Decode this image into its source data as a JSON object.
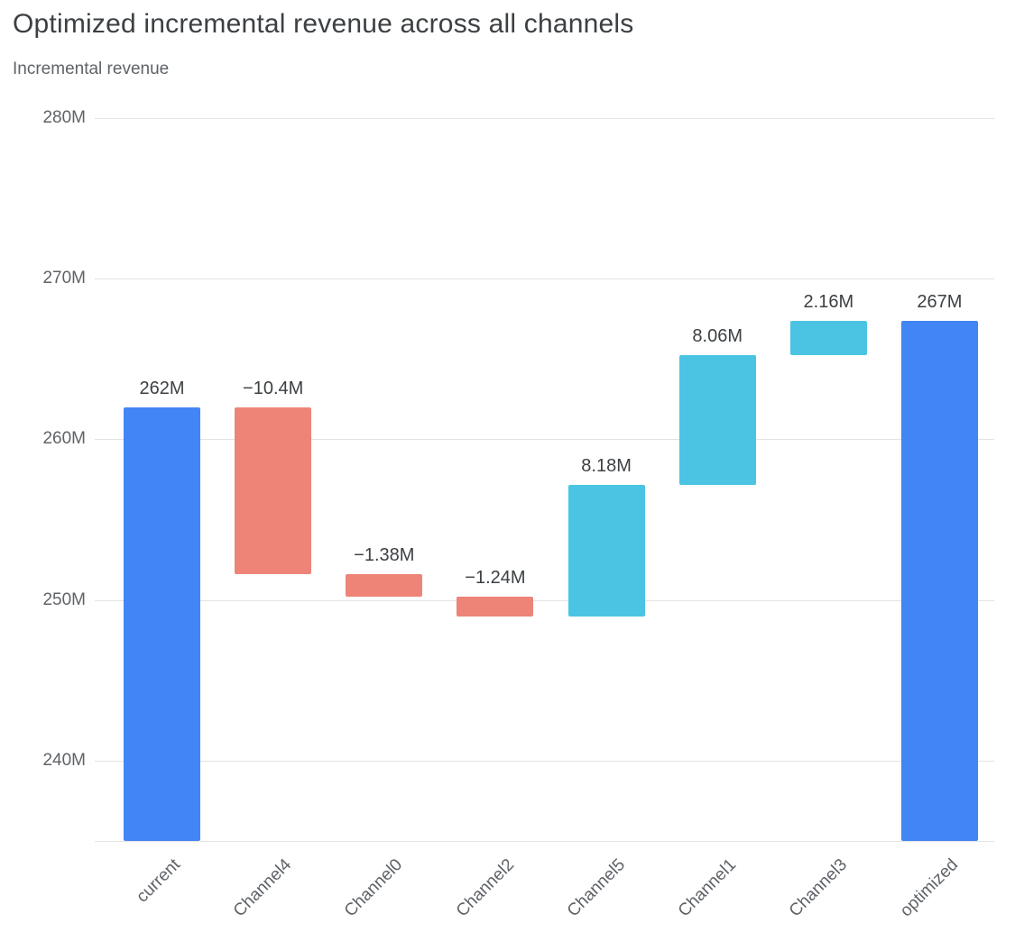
{
  "header": {
    "title": "Optimized incremental revenue across all channels",
    "subtitle": "Incremental revenue"
  },
  "chart_data": {
    "type": "bar",
    "subtype": "waterfall",
    "title": "Optimized incremental revenue across all channels",
    "ylabel": "Incremental revenue",
    "xlabel": "",
    "ylim": [
      235,
      280
    ],
    "grid": true,
    "legend": "none",
    "yticks": [
      {
        "label": "280M",
        "value": 280
      },
      {
        "label": "270M",
        "value": 270
      },
      {
        "label": "260M",
        "value": 260
      },
      {
        "label": "250M",
        "value": 250
      },
      {
        "label": "240M",
        "value": 240
      }
    ],
    "colors": {
      "total": "#4285f4",
      "increase": "#4ac4e2",
      "decrease": "#ee8378"
    },
    "categories": [
      "current",
      "Channel4",
      "Channel0",
      "Channel2",
      "Channel5",
      "Channel1",
      "Channel3",
      "optimized"
    ],
    "bars": [
      {
        "category": "current",
        "kind": "total",
        "value": 262,
        "display": "262M"
      },
      {
        "category": "Channel4",
        "kind": "relative",
        "value": -10.4,
        "display": "−10.4M"
      },
      {
        "category": "Channel0",
        "kind": "relative",
        "value": -1.38,
        "display": "−1.38M"
      },
      {
        "category": "Channel2",
        "kind": "relative",
        "value": -1.24,
        "display": "−1.24M"
      },
      {
        "category": "Channel5",
        "kind": "relative",
        "value": 8.18,
        "display": "8.18M"
      },
      {
        "category": "Channel1",
        "kind": "relative",
        "value": 8.06,
        "display": "8.06M"
      },
      {
        "category": "Channel3",
        "kind": "relative",
        "value": 2.16,
        "display": "2.16M"
      },
      {
        "category": "optimized",
        "kind": "total",
        "value": 267.38,
        "display": "267M"
      }
    ]
  }
}
